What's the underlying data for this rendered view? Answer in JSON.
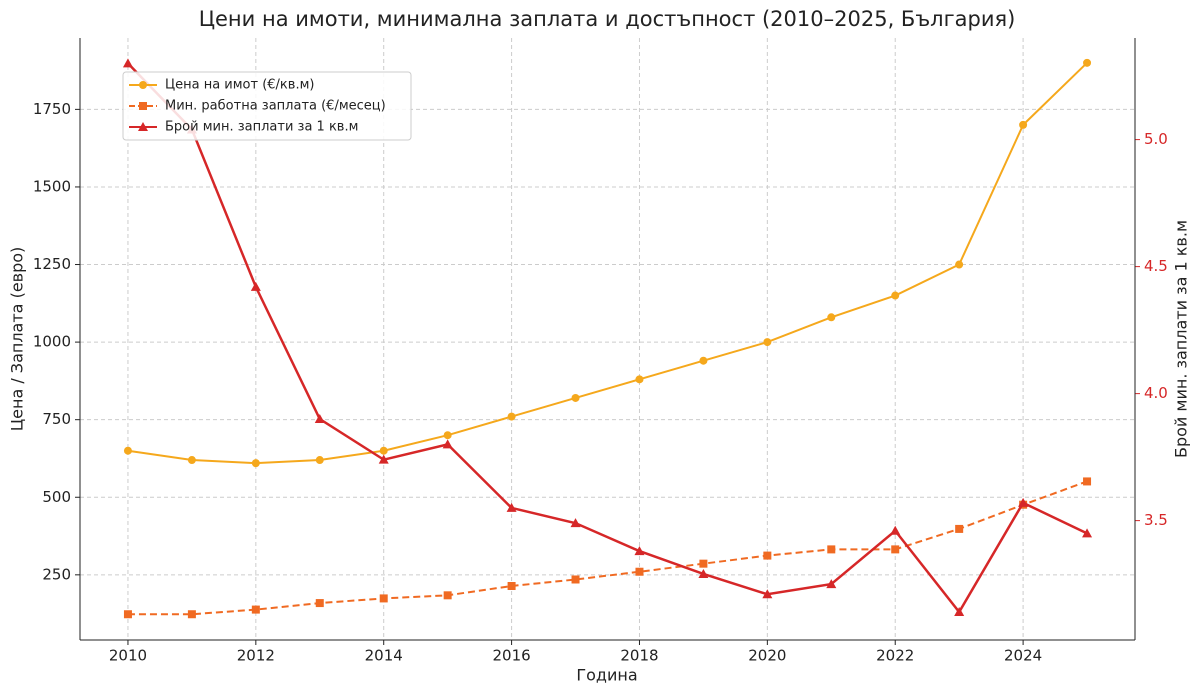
{
  "chart_data": {
    "type": "line",
    "title": "Цени на имоти, минимална заплата и достъпност (2010–2025, България)",
    "x_label": "Година",
    "y_label": "Цена / Заплата (евро)",
    "y2_label": "Брой мин. заплати за 1 кв.м",
    "x": [
      2010,
      2011,
      2012,
      2013,
      2014,
      2015,
      2016,
      2017,
      2018,
      2019,
      2020,
      2021,
      2022,
      2023,
      2024,
      2025
    ],
    "xlim": [
      2009.25,
      2025.75
    ],
    "xticks": [
      2010,
      2012,
      2014,
      2016,
      2018,
      2020,
      2022,
      2024
    ],
    "ylim": [
      40,
      1980
    ],
    "yticks": [
      250,
      500,
      750,
      1000,
      1250,
      1500,
      1750
    ],
    "y2lim": [
      3.03,
      5.4
    ],
    "y2ticks": [
      {
        "value": 3.5,
        "label": "3.5"
      },
      {
        "value": 4,
        "label": "4.0"
      },
      {
        "value": 4.5,
        "label": "4.5"
      },
      {
        "value": 5,
        "label": "5.0"
      }
    ],
    "y2_color": "#d62728",
    "grid": true,
    "legend": "upper left",
    "series": [
      {
        "name": "Цена на имот (€/кв.м)",
        "color": "#f5a81c",
        "marker": "circle",
        "dashed": false,
        "values": [
          650,
          620,
          610,
          620,
          650,
          700,
          760,
          820,
          880,
          940,
          1000,
          1080,
          1150,
          1250,
          1700,
          1900
        ]
      },
      {
        "name": "Мин. работна заплата (€/месец)",
        "color": "#f06a22",
        "marker": "square",
        "dashed": true,
        "values": [
          123,
          123,
          138,
          159,
          174,
          184,
          214,
          235,
          260,
          286,
          312,
          332,
          332,
          398,
          476,
          551
        ]
      },
      {
        "name": "Брой мин. заплати за 1 кв.м",
        "color": "#d62728",
        "marker": "triangle",
        "dashed": false,
        "axis": "y2",
        "values": [
          5.3,
          5.04,
          4.42,
          3.9,
          3.74,
          3.8,
          3.55,
          3.49,
          3.38,
          3.29,
          3.21,
          3.25,
          3.46,
          3.14,
          3.57,
          3.45
        ]
      }
    ]
  }
}
